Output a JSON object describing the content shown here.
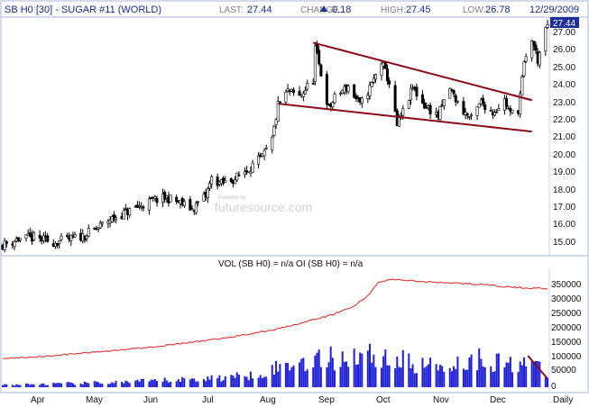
{
  "header": {
    "symbol": "SB H0 [30] - SUGAR #11 (WORLD)",
    "last_label": "LAST:",
    "last": "27.44",
    "change_label": "CHANGE:",
    "change": "0.18",
    "high_label": "HIGH:",
    "high": "27.45",
    "low_label": "LOW:",
    "low": "26.78",
    "date": "12/29/2009"
  },
  "watermark": {
    "small": "Powered by",
    "brand": "futuresource.com"
  },
  "colors": {
    "frame": "#aab4d4",
    "header_text": "#1a2a8a",
    "candles": "#000000",
    "trendline": "#8b0a1a",
    "volume": "#1f1fd6",
    "open_interest": "#e0201e",
    "last_tag": "#1f2f9a",
    "up_arrow": "#1f2f9a"
  },
  "chart_data": [
    {
      "type": "candlestick",
      "title": "SB H0 [30] - SUGAR #11 (WORLD)",
      "x_tick_labels": [
        "Apr",
        "May",
        "Jun",
        "Jul",
        "Aug",
        "Sep",
        "Oct",
        "Nov",
        "Dec",
        "Daily"
      ],
      "y_tick_labels": [
        "15.00",
        "16.00",
        "17.00",
        "18.00",
        "19.00",
        "20.00",
        "21.00",
        "22.00",
        "23.00",
        "24.00",
        "25.00",
        "26.00",
        "27.00"
      ],
      "ylim": [
        14.4,
        27.7
      ],
      "last_price_tag": "27.44",
      "close_path": [
        [
          "2009-03-25",
          14.8
        ],
        [
          "2009-04-01",
          15.1
        ],
        [
          "2009-04-10",
          15.2
        ],
        [
          "2009-04-20",
          14.95
        ],
        [
          "2009-04-28",
          15.1
        ],
        [
          "2009-05-05",
          15.3
        ],
        [
          "2009-05-12",
          15.7
        ],
        [
          "2009-05-18",
          16.2
        ],
        [
          "2009-05-26",
          16.6
        ],
        [
          "2009-06-03",
          17.0
        ],
        [
          "2009-06-10",
          17.35
        ],
        [
          "2009-06-17",
          17.5
        ],
        [
          "2009-06-24",
          17.2
        ],
        [
          "2009-06-30",
          16.85
        ],
        [
          "2009-07-07",
          17.6
        ],
        [
          "2009-07-10",
          18.6
        ],
        [
          "2009-07-15",
          18.3
        ],
        [
          "2009-07-22",
          18.6
        ],
        [
          "2009-07-29",
          19.2
        ],
        [
          "2009-08-05",
          19.8
        ],
        [
          "2009-08-10",
          20.8
        ],
        [
          "2009-08-13",
          22.8
        ],
        [
          "2009-08-18",
          23.6
        ],
        [
          "2009-08-24",
          23.3
        ],
        [
          "2009-08-31",
          24.3
        ],
        [
          "2009-09-01",
          26.1
        ],
        [
          "2009-09-04",
          24.6
        ],
        [
          "2009-09-08",
          22.6
        ],
        [
          "2009-09-12",
          23.4
        ],
        [
          "2009-09-18",
          23.9
        ],
        [
          "2009-09-24",
          22.8
        ],
        [
          "2009-09-30",
          24.0
        ],
        [
          "2009-10-05",
          25.3
        ],
        [
          "2009-10-09",
          24.1
        ],
        [
          "2009-10-13",
          21.6
        ],
        [
          "2009-10-16",
          22.4
        ],
        [
          "2009-10-21",
          23.8
        ],
        [
          "2009-10-27",
          22.8
        ],
        [
          "2009-11-03",
          22.2
        ],
        [
          "2009-11-09",
          23.8
        ],
        [
          "2009-11-14",
          22.7
        ],
        [
          "2009-11-20",
          22.0
        ],
        [
          "2009-11-25",
          23.0
        ],
        [
          "2009-12-01",
          22.4
        ],
        [
          "2009-12-07",
          23.1
        ],
        [
          "2009-12-10",
          22.3
        ],
        [
          "2009-12-14",
          22.6
        ],
        [
          "2009-12-17",
          25.1
        ],
        [
          "2009-12-21",
          26.6
        ],
        [
          "2009-12-24",
          25.4
        ],
        [
          "2009-12-29",
          27.44
        ]
      ],
      "trendlines": [
        {
          "from": [
            "2009-08-31",
            26.4
          ],
          "to": [
            "2009-12-21",
            23.1
          ]
        },
        {
          "from": [
            "2009-08-13",
            22.9
          ],
          "to": [
            "2009-12-21",
            21.3
          ]
        },
        {
          "from": [
            "2009-12-11",
            23.4
          ],
          "to": [
            "2009-12-21",
            23.1
          ]
        }
      ]
    },
    {
      "type": "bar",
      "title": "VOL (SB H0) = n/a OI (SB H0) = n/a",
      "y_tick_labels": [
        "0",
        "50000",
        "100000",
        "150000",
        "200000",
        "250000",
        "300000",
        "350000"
      ],
      "ylim": [
        0,
        395000
      ],
      "series": [
        {
          "name": "VOL (SB H0)",
          "values": [
            [
              "2009-03-25",
              8000
            ],
            [
              "2009-05-01",
              13000
            ],
            [
              "2009-06-01",
              19000
            ],
            [
              "2009-07-01",
              28000
            ],
            [
              "2009-07-25",
              38000
            ],
            [
              "2009-08-10",
              62000
            ],
            [
              "2009-08-25",
              92000
            ],
            [
              "2009-09-10",
              100000
            ],
            [
              "2009-09-25",
              115000
            ],
            [
              "2009-10-10",
              100000
            ],
            [
              "2009-10-25",
              75000
            ],
            [
              "2009-11-10",
              80000
            ],
            [
              "2009-11-25",
              100000
            ],
            [
              "2009-12-10",
              80000
            ],
            [
              "2009-12-18",
              100000
            ],
            [
              "2009-12-29",
              40000
            ]
          ]
        },
        {
          "name": "OI (SB H0)",
          "values": [
            [
              "2009-03-25",
              100000
            ],
            [
              "2009-04-15",
              108000
            ],
            [
              "2009-05-15",
              125000
            ],
            [
              "2009-06-15",
              145000
            ],
            [
              "2009-07-15",
              170000
            ],
            [
              "2009-08-10",
              200000
            ],
            [
              "2009-08-25",
              225000
            ],
            [
              "2009-09-08",
              250000
            ],
            [
              "2009-09-20",
              280000
            ],
            [
              "2009-09-28",
              320000
            ],
            [
              "2009-10-03",
              365000
            ],
            [
              "2009-10-10",
              378000
            ],
            [
              "2009-10-25",
              370000
            ],
            [
              "2009-11-10",
              365000
            ],
            [
              "2009-11-25",
              360000
            ],
            [
              "2009-12-10",
              350000
            ],
            [
              "2009-12-29",
              345000
            ]
          ]
        }
      ],
      "trendlines": [
        {
          "from": [
            "2009-12-19",
            110000
          ],
          "to": [
            "2009-12-29",
            30000
          ]
        }
      ]
    }
  ]
}
